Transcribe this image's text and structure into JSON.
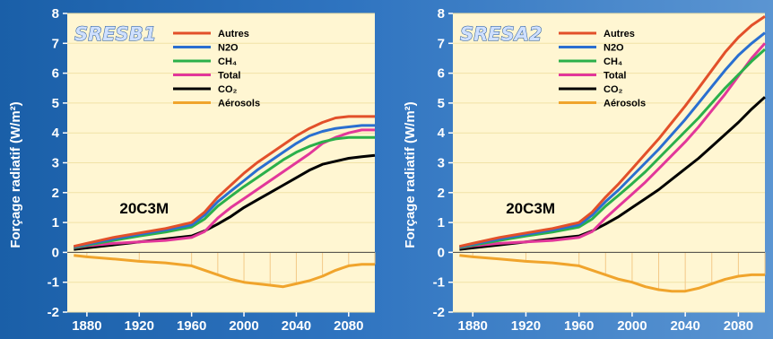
{
  "y_axis_label": "Forçage radiatif (W/m²)",
  "chart_data": [
    {
      "type": "line",
      "title": "SRESB1",
      "annotation": "20C3M",
      "ylabel": "Forçage radiatif (W/m²)",
      "xlabel": "",
      "xlim": [
        1865,
        2100
      ],
      "ylim": [
        -2,
        8
      ],
      "x_ticks": [
        1880,
        1920,
        1960,
        2000,
        2040,
        2080
      ],
      "y_ticks": [
        -2,
        -1,
        0,
        1,
        2,
        3,
        4,
        5,
        6,
        7,
        8
      ],
      "grid": true,
      "legend": "top",
      "x": [
        1870,
        1880,
        1900,
        1920,
        1940,
        1960,
        1970,
        1980,
        1990,
        2000,
        2010,
        2020,
        2030,
        2040,
        2050,
        2060,
        2070,
        2080,
        2090,
        2100
      ],
      "series": [
        {
          "name": "Autres",
          "color": "#e2502a",
          "values": [
            0.2,
            0.3,
            0.5,
            0.65,
            0.8,
            1.0,
            1.35,
            1.85,
            2.25,
            2.65,
            3.0,
            3.3,
            3.6,
            3.9,
            4.15,
            4.35,
            4.5,
            4.55,
            4.55,
            4.55
          ]
        },
        {
          "name": "N2O",
          "color": "#2a6fd0",
          "values": [
            0.18,
            0.27,
            0.45,
            0.6,
            0.75,
            0.92,
            1.25,
            1.7,
            2.05,
            2.4,
            2.75,
            3.05,
            3.35,
            3.65,
            3.9,
            4.05,
            4.15,
            4.2,
            4.25,
            4.25
          ]
        },
        {
          "name": "CH₄",
          "color": "#2bb04a",
          "values": [
            0.16,
            0.24,
            0.4,
            0.55,
            0.68,
            0.85,
            1.12,
            1.55,
            1.88,
            2.2,
            2.5,
            2.8,
            3.1,
            3.35,
            3.55,
            3.7,
            3.8,
            3.85,
            3.85,
            3.85
          ]
        },
        {
          "name": "Total",
          "color": "#e2379a",
          "values": [
            0.15,
            0.22,
            0.3,
            0.35,
            0.4,
            0.5,
            0.7,
            1.15,
            1.5,
            1.8,
            2.1,
            2.4,
            2.7,
            3.0,
            3.3,
            3.65,
            3.85,
            4.0,
            4.1,
            4.1
          ]
        },
        {
          "name": "CO₂",
          "color": "#000000",
          "values": [
            0.1,
            0.15,
            0.25,
            0.35,
            0.45,
            0.55,
            0.72,
            0.95,
            1.2,
            1.5,
            1.75,
            2.0,
            2.25,
            2.5,
            2.75,
            2.95,
            3.05,
            3.15,
            3.2,
            3.25
          ]
        },
        {
          "name": "Aérosols",
          "color": "#f0a42c",
          "values": [
            -0.1,
            -0.15,
            -0.22,
            -0.3,
            -0.35,
            -0.45,
            -0.6,
            -0.75,
            -0.9,
            -1.0,
            -1.05,
            -1.1,
            -1.15,
            -1.05,
            -0.95,
            -0.8,
            -0.6,
            -0.45,
            -0.4,
            -0.4
          ]
        }
      ]
    },
    {
      "type": "line",
      "title": "SRESA2",
      "annotation": "20C3M",
      "ylabel": "Forçage radiatif (W/m²)",
      "xlabel": "",
      "xlim": [
        1865,
        2100
      ],
      "ylim": [
        -2,
        8
      ],
      "x_ticks": [
        1880,
        1920,
        1960,
        2000,
        2040,
        2080
      ],
      "y_ticks": [
        -2,
        -1,
        0,
        1,
        2,
        3,
        4,
        5,
        6,
        7,
        8
      ],
      "grid": true,
      "legend": "top",
      "x": [
        1870,
        1880,
        1900,
        1920,
        1940,
        1960,
        1970,
        1980,
        1990,
        2000,
        2010,
        2020,
        2030,
        2040,
        2050,
        2060,
        2070,
        2080,
        2090,
        2100
      ],
      "series": [
        {
          "name": "Autres",
          "color": "#e2502a",
          "values": [
            0.2,
            0.3,
            0.5,
            0.65,
            0.8,
            1.0,
            1.35,
            1.85,
            2.3,
            2.8,
            3.3,
            3.8,
            4.35,
            4.9,
            5.5,
            6.1,
            6.7,
            7.2,
            7.6,
            7.9
          ]
        },
        {
          "name": "N2O",
          "color": "#2a6fd0",
          "values": [
            0.18,
            0.27,
            0.45,
            0.6,
            0.75,
            0.92,
            1.25,
            1.7,
            2.1,
            2.55,
            3.0,
            3.45,
            3.95,
            4.45,
            5.0,
            5.55,
            6.1,
            6.6,
            7.0,
            7.35
          ]
        },
        {
          "name": "CH₄",
          "color": "#2bb04a",
          "values": [
            0.16,
            0.24,
            0.4,
            0.55,
            0.68,
            0.85,
            1.12,
            1.55,
            1.92,
            2.3,
            2.7,
            3.15,
            3.6,
            4.05,
            4.5,
            5.0,
            5.5,
            5.95,
            6.4,
            6.8
          ]
        },
        {
          "name": "Total",
          "color": "#e2379a",
          "values": [
            0.15,
            0.22,
            0.3,
            0.35,
            0.4,
            0.5,
            0.7,
            1.15,
            1.55,
            1.95,
            2.35,
            2.8,
            3.25,
            3.7,
            4.2,
            4.75,
            5.3,
            5.9,
            6.5,
            7.0
          ]
        },
        {
          "name": "CO₂",
          "color": "#000000",
          "values": [
            0.1,
            0.15,
            0.25,
            0.35,
            0.45,
            0.55,
            0.72,
            0.95,
            1.2,
            1.5,
            1.8,
            2.1,
            2.45,
            2.8,
            3.15,
            3.55,
            3.95,
            4.35,
            4.8,
            5.2
          ]
        },
        {
          "name": "Aérosols",
          "color": "#f0a42c",
          "values": [
            -0.1,
            -0.15,
            -0.22,
            -0.3,
            -0.35,
            -0.45,
            -0.6,
            -0.75,
            -0.9,
            -1.0,
            -1.15,
            -1.25,
            -1.3,
            -1.3,
            -1.2,
            -1.05,
            -0.9,
            -0.8,
            -0.75,
            -0.75
          ]
        }
      ]
    }
  ]
}
